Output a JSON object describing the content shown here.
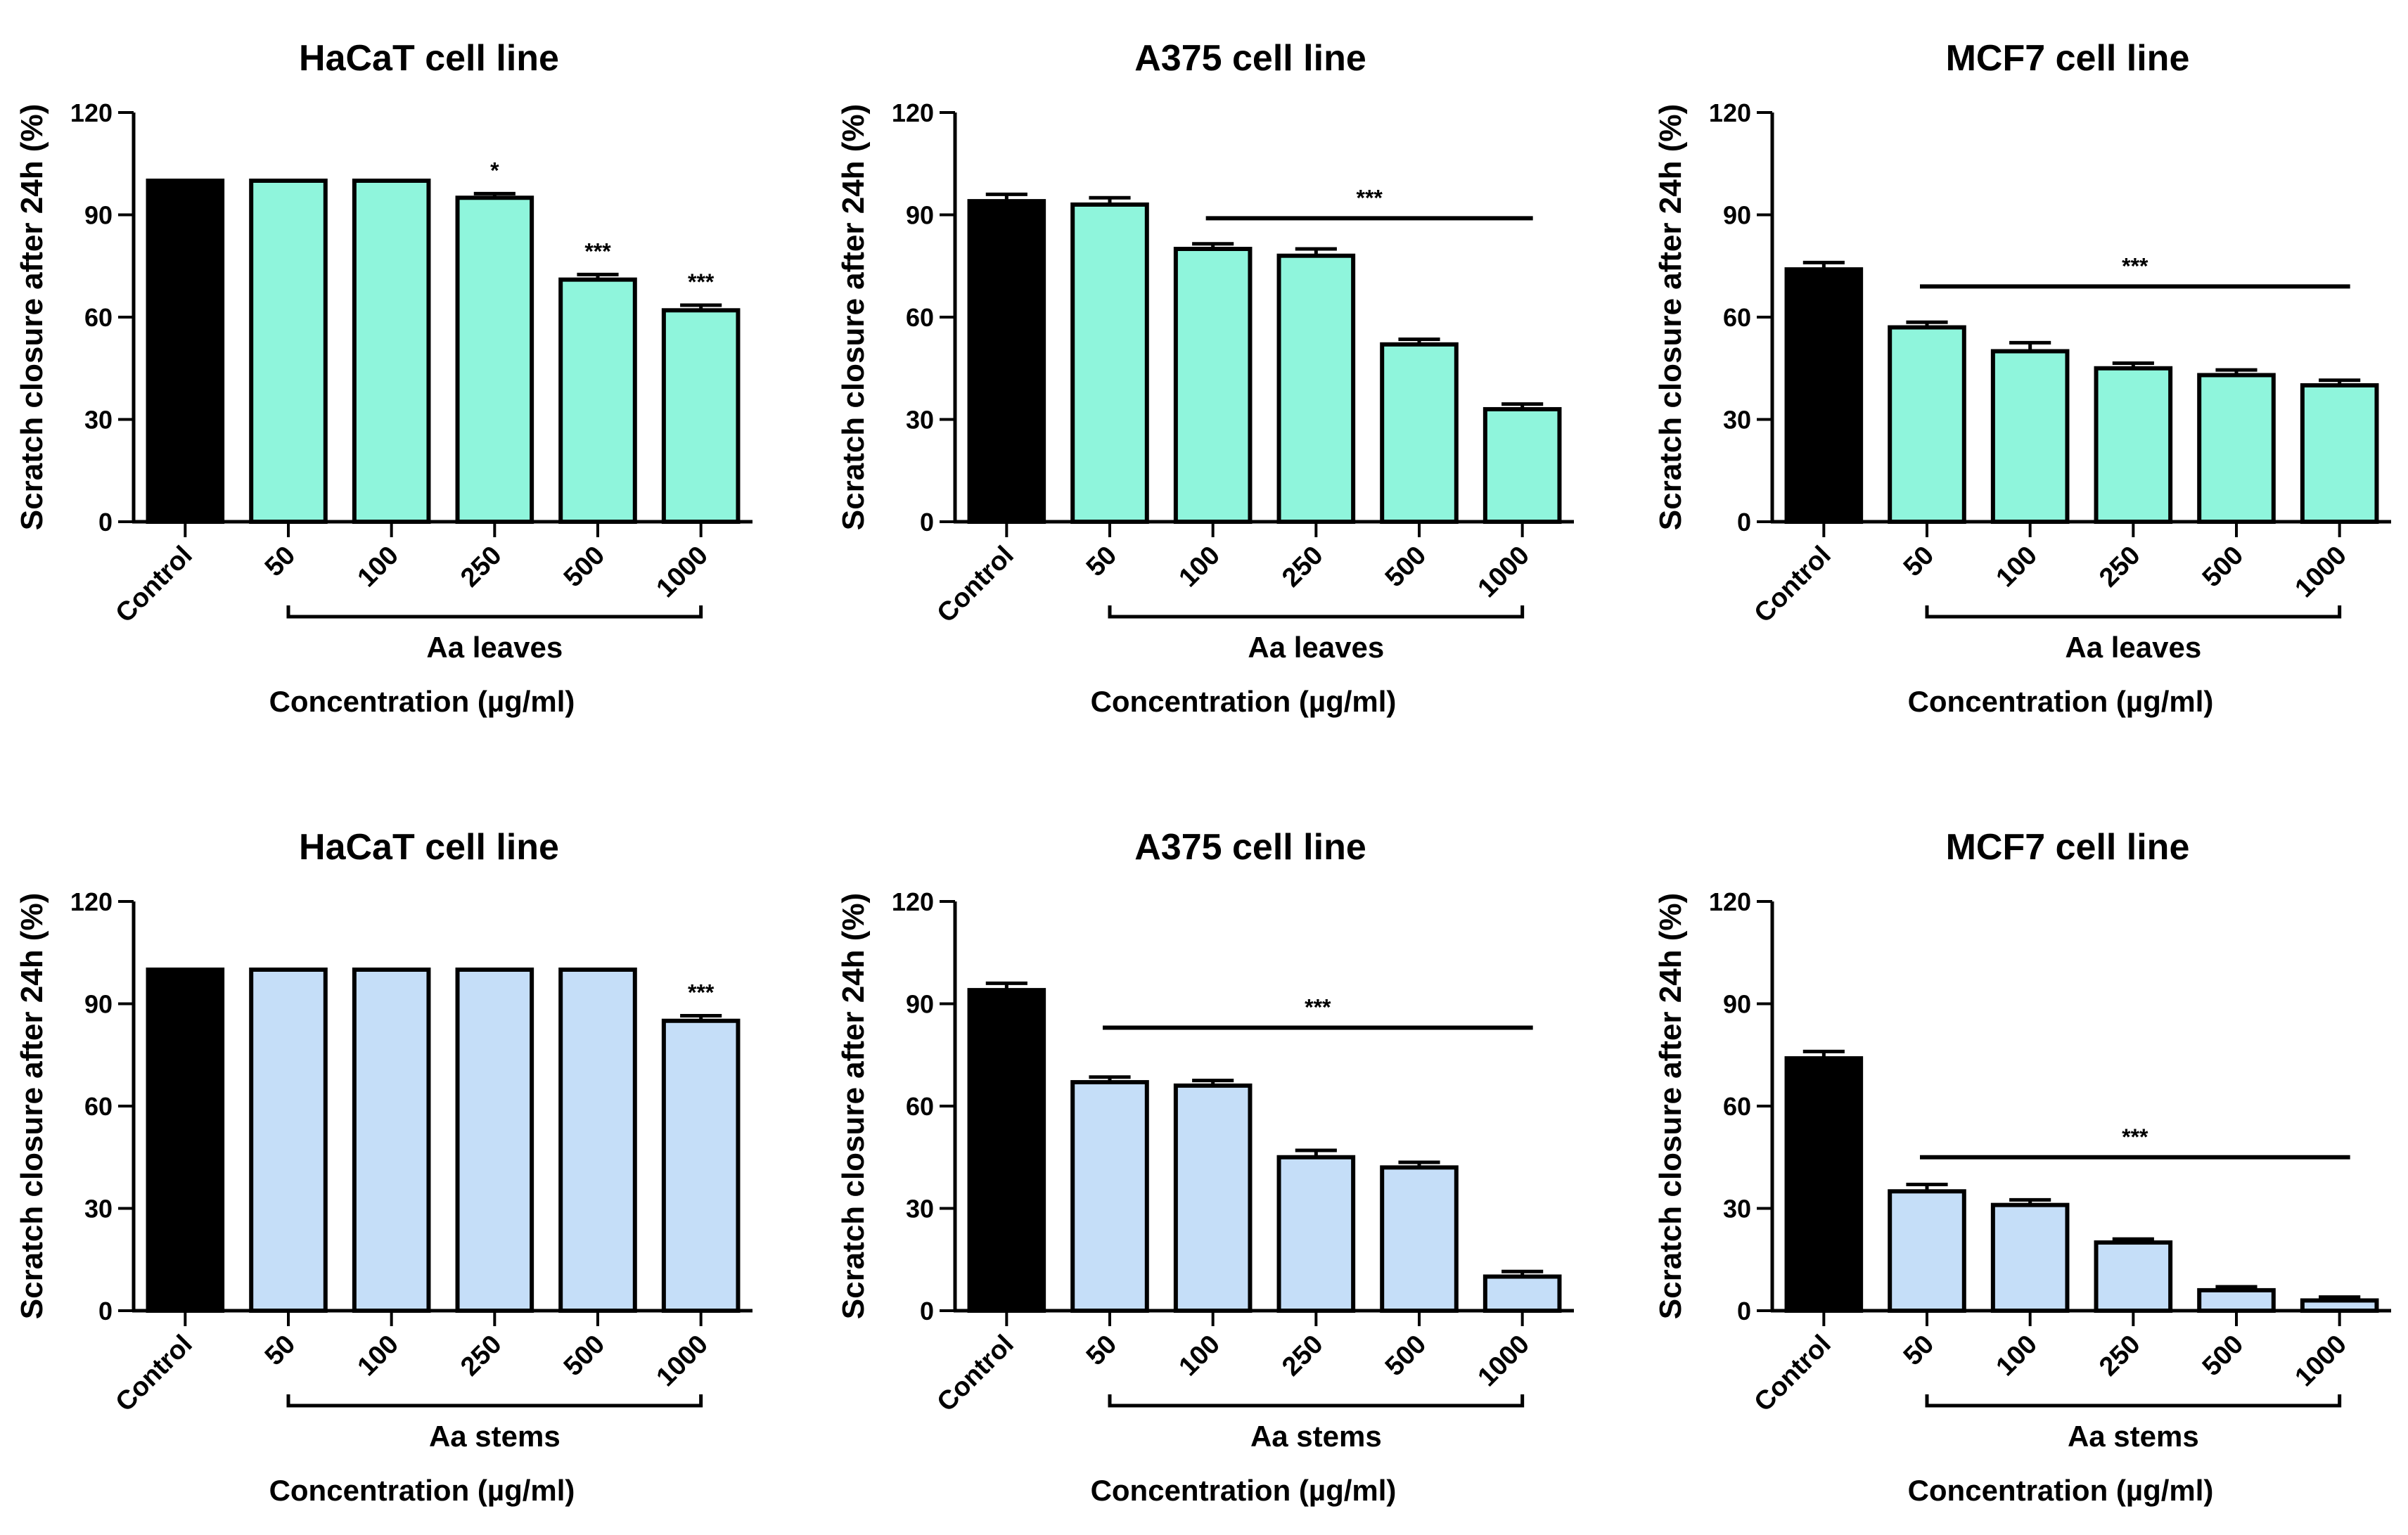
{
  "figure": {
    "panel_count": 6
  },
  "chart_data": [
    {
      "type": "bar",
      "title": "HaCaT cell line",
      "ylabel": "Scratch closure after 24h (%)",
      "xlabel": "Concentration (µg/ml)",
      "group_label": "Aa leaves",
      "categories": [
        "Control",
        "50",
        "100",
        "250",
        "500",
        "1000"
      ],
      "values": [
        100,
        100,
        100,
        95,
        71,
        62
      ],
      "errors": [
        0,
        0,
        0,
        1.2,
        1.5,
        1.5
      ],
      "colors": [
        "#000000",
        "#8ff5dc",
        "#8ff5dc",
        "#8ff5dc",
        "#8ff5dc",
        "#8ff5dc"
      ],
      "ylim": [
        0,
        120
      ],
      "yticks": [
        "0",
        "30",
        "60",
        "90",
        "120"
      ],
      "significance": [
        {
          "type": "bar",
          "index": 3,
          "label": "*"
        },
        {
          "type": "bar",
          "index": 4,
          "label": "***"
        },
        {
          "type": "bar",
          "index": 5,
          "label": "***"
        }
      ]
    },
    {
      "type": "bar",
      "title": "A375 cell line",
      "ylabel": "Scratch closure after 24h (%)",
      "xlabel": "Concentration (µg/ml)",
      "group_label": "Aa leaves",
      "categories": [
        "Control",
        "50",
        "100",
        "250",
        "500",
        "1000"
      ],
      "values": [
        94,
        93,
        80,
        78,
        52,
        33
      ],
      "errors": [
        2,
        2,
        1.5,
        2,
        1.5,
        1.5
      ],
      "colors": [
        "#000000",
        "#8ff5dc",
        "#8ff5dc",
        "#8ff5dc",
        "#8ff5dc",
        "#8ff5dc"
      ],
      "ylim": [
        0,
        120
      ],
      "yticks": [
        "0",
        "30",
        "60",
        "90",
        "120"
      ],
      "significance": [
        {
          "type": "line",
          "from": 2,
          "to": 5,
          "y": 89,
          "label": "***"
        }
      ]
    },
    {
      "type": "bar",
      "title": "MCF7 cell line",
      "ylabel": "Scratch closure after 24h (%)",
      "xlabel": "Concentration (µg/ml)",
      "group_label": "Aa leaves",
      "categories": [
        "Control",
        "50",
        "100",
        "250",
        "500",
        "1000"
      ],
      "values": [
        74,
        57,
        50,
        45,
        43,
        40
      ],
      "errors": [
        2,
        1.5,
        2.5,
        1.5,
        1.5,
        1.5
      ],
      "colors": [
        "#000000",
        "#8ff5dc",
        "#8ff5dc",
        "#8ff5dc",
        "#8ff5dc",
        "#8ff5dc"
      ],
      "ylim": [
        0,
        120
      ],
      "yticks": [
        "0",
        "30",
        "60",
        "90",
        "120"
      ],
      "significance": [
        {
          "type": "line",
          "from": 1,
          "to": 5,
          "y": 69,
          "label": "***"
        }
      ]
    },
    {
      "type": "bar",
      "title": "HaCaT cell line",
      "ylabel": "Scratch closure after 24h (%)",
      "xlabel": "Concentration (µg/ml)",
      "group_label": "Aa stems",
      "categories": [
        "Control",
        "50",
        "100",
        "250",
        "500",
        "1000"
      ],
      "values": [
        100,
        100,
        100,
        100,
        100,
        85
      ],
      "errors": [
        0,
        0,
        0,
        0,
        0,
        1.5
      ],
      "colors": [
        "#000000",
        "#c5def8",
        "#c5def8",
        "#c5def8",
        "#c5def8",
        "#c5def8"
      ],
      "ylim": [
        0,
        120
      ],
      "yticks": [
        "0",
        "30",
        "60",
        "90",
        "120"
      ],
      "significance": [
        {
          "type": "bar",
          "index": 5,
          "label": "***"
        }
      ]
    },
    {
      "type": "bar",
      "title": "A375 cell line",
      "ylabel": "Scratch closure after 24h (%)",
      "xlabel": "Concentration (µg/ml)",
      "group_label": "Aa stems",
      "categories": [
        "Control",
        "50",
        "100",
        "250",
        "500",
        "1000"
      ],
      "values": [
        94,
        67,
        66,
        45,
        42,
        10
      ],
      "errors": [
        2,
        1.5,
        1.5,
        2,
        1.5,
        1.5
      ],
      "colors": [
        "#000000",
        "#c5def8",
        "#c5def8",
        "#c5def8",
        "#c5def8",
        "#c5def8"
      ],
      "ylim": [
        0,
        120
      ],
      "yticks": [
        "0",
        "30",
        "60",
        "90",
        "120"
      ],
      "significance": [
        {
          "type": "line",
          "from": 1,
          "to": 5,
          "y": 83,
          "label": "***"
        }
      ]
    },
    {
      "type": "bar",
      "title": "MCF7 cell line",
      "ylabel": "Scratch closure after 24h (%)",
      "xlabel": "Concentration (µg/ml)",
      "group_label": "Aa stems",
      "categories": [
        "Control",
        "50",
        "100",
        "250",
        "500",
        "1000"
      ],
      "values": [
        74,
        35,
        31,
        20,
        6,
        3
      ],
      "errors": [
        2,
        2,
        1.5,
        1,
        1,
        1
      ],
      "colors": [
        "#000000",
        "#c5def8",
        "#c5def8",
        "#c5def8",
        "#c5def8",
        "#c5def8"
      ],
      "ylim": [
        0,
        120
      ],
      "yticks": [
        "0",
        "30",
        "60",
        "90",
        "120"
      ],
      "significance": [
        {
          "type": "line",
          "from": 1,
          "to": 5,
          "y": 45,
          "label": "***"
        }
      ]
    }
  ]
}
